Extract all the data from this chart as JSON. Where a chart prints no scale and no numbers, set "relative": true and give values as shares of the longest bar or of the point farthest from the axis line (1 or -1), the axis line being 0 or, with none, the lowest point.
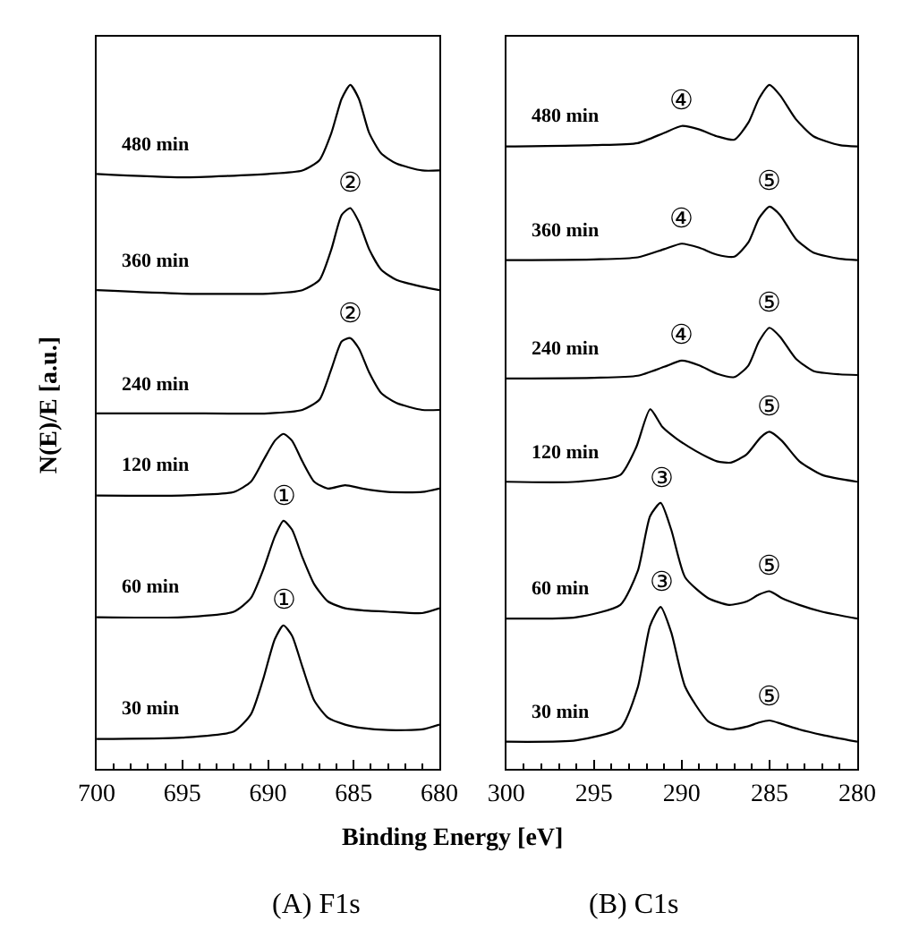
{
  "chart_data": [
    {
      "type": "line",
      "title": "(A) F1s",
      "xlabel": "Binding Energy [eV]",
      "ylabel": "N(E)/E [a.u.]",
      "xlim": [
        700,
        680
      ],
      "xticks": [
        700,
        695,
        690,
        685,
        680
      ],
      "relative": true,
      "series": [
        {
          "name": "480 min",
          "color": "#000000",
          "x": [
            700,
            695,
            690,
            688,
            687,
            686.3,
            685.7,
            685.2,
            684.7,
            684.1,
            683.4,
            682.5,
            681,
            680
          ],
          "values": [
            0.87,
            0.865,
            0.87,
            0.875,
            0.89,
            0.93,
            0.98,
            1.0,
            0.98,
            0.93,
            0.9,
            0.885,
            0.875,
            0.875
          ]
        },
        {
          "name": "360 min",
          "color": "#000000",
          "x": [
            700,
            695,
            690,
            688,
            687,
            686.3,
            685.7,
            685.2,
            684.7,
            684.1,
            683.4,
            682.5,
            681,
            680
          ],
          "values": [
            0.7,
            0.695,
            0.695,
            0.7,
            0.715,
            0.76,
            0.81,
            0.82,
            0.8,
            0.76,
            0.73,
            0.715,
            0.705,
            0.7
          ]
        },
        {
          "name": "240 min",
          "color": "#000000",
          "x": [
            700,
            695,
            690,
            688,
            687,
            686.3,
            685.7,
            685.2,
            684.7,
            684.1,
            683.4,
            682.5,
            681,
            680
          ],
          "values": [
            0.52,
            0.52,
            0.52,
            0.525,
            0.54,
            0.585,
            0.625,
            0.63,
            0.615,
            0.58,
            0.55,
            0.535,
            0.525,
            0.525
          ]
        },
        {
          "name": "120 min",
          "color": "#000000",
          "x": [
            700,
            695,
            692,
            691,
            690.3,
            689.6,
            689.1,
            688.6,
            688,
            687.3,
            686.5,
            685.5,
            684.5,
            683,
            681,
            680
          ],
          "values": [
            0.4,
            0.4,
            0.405,
            0.42,
            0.45,
            0.48,
            0.49,
            0.48,
            0.45,
            0.42,
            0.41,
            0.415,
            0.41,
            0.405,
            0.405,
            0.41
          ]
        },
        {
          "name": "60 min",
          "color": "#000000",
          "x": [
            700,
            695,
            692,
            691,
            690.3,
            689.6,
            689.1,
            688.6,
            688,
            687.3,
            686.5,
            685.5,
            684.5,
            683,
            681,
            680
          ],
          "values": [
            0.222,
            0.222,
            0.23,
            0.25,
            0.29,
            0.34,
            0.363,
            0.35,
            0.31,
            0.27,
            0.245,
            0.235,
            0.232,
            0.23,
            0.228,
            0.235
          ]
        },
        {
          "name": "30 min",
          "color": "#000000",
          "x": [
            700,
            695,
            692,
            691,
            690.3,
            689.6,
            689.1,
            688.6,
            688,
            687.3,
            686.5,
            685.5,
            684.5,
            683,
            681,
            680
          ],
          "values": [
            0.044,
            0.046,
            0.055,
            0.08,
            0.13,
            0.19,
            0.21,
            0.195,
            0.15,
            0.1,
            0.075,
            0.065,
            0.06,
            0.057,
            0.058,
            0.065
          ]
        }
      ],
      "annotations": [
        {
          "text": "②",
          "x": 685.2,
          "y": 0.82
        },
        {
          "text": "②",
          "x": 685.2,
          "y": 0.63
        },
        {
          "text": "①",
          "x": 689.1,
          "y": 0.363
        },
        {
          "text": "①",
          "x": 689.1,
          "y": 0.21
        }
      ]
    },
    {
      "type": "line",
      "title": "(B) C1s",
      "xlim": [
        300,
        280
      ],
      "xticks": [
        300,
        295,
        290,
        285,
        280
      ],
      "relative": true,
      "series": [
        {
          "name": "480 min",
          "color": "#000000",
          "x": [
            300,
            295,
            292.5,
            291,
            290,
            289,
            288,
            287,
            286.2,
            285.6,
            285,
            284.4,
            283.5,
            282.5,
            281,
            280
          ],
          "values": [
            0.91,
            0.912,
            0.915,
            0.93,
            0.94,
            0.935,
            0.925,
            0.92,
            0.945,
            0.98,
            1.0,
            0.985,
            0.95,
            0.925,
            0.912,
            0.91
          ]
        },
        {
          "name": "360 min",
          "color": "#000000",
          "x": [
            300,
            295,
            292.5,
            291,
            290,
            289,
            288,
            287,
            286.2,
            285.6,
            285,
            284.4,
            283.5,
            282.5,
            281,
            280
          ],
          "values": [
            0.744,
            0.745,
            0.748,
            0.76,
            0.768,
            0.762,
            0.752,
            0.749,
            0.77,
            0.805,
            0.822,
            0.81,
            0.775,
            0.755,
            0.746,
            0.744
          ]
        },
        {
          "name": "240 min",
          "color": "#000000",
          "x": [
            300,
            295,
            292.5,
            291,
            290,
            289,
            288,
            287,
            286.2,
            285.6,
            285,
            284.4,
            283.5,
            282.5,
            281,
            280
          ],
          "values": [
            0.571,
            0.572,
            0.575,
            0.588,
            0.597,
            0.59,
            0.578,
            0.573,
            0.59,
            0.625,
            0.645,
            0.632,
            0.6,
            0.582,
            0.577,
            0.576
          ]
        },
        {
          "name": "120 min",
          "color": "#000000",
          "x": [
            300,
            296,
            293.5,
            292.6,
            291.8,
            291.1,
            290.3,
            289.2,
            288,
            287.2,
            286.3,
            285.5,
            285,
            284.3,
            283.3,
            282,
            280
          ],
          "values": [
            0.42,
            0.42,
            0.43,
            0.47,
            0.526,
            0.5,
            0.483,
            0.465,
            0.45,
            0.448,
            0.46,
            0.485,
            0.493,
            0.48,
            0.45,
            0.43,
            0.42
          ]
        },
        {
          "name": "60 min",
          "color": "#000000",
          "x": [
            300,
            296,
            293.5,
            292.5,
            291.8,
            291.2,
            290.6,
            289.8,
            288.5,
            287.3,
            286.3,
            285.6,
            285,
            284.3,
            283.3,
            282,
            280
          ],
          "values": [
            0.22,
            0.222,
            0.24,
            0.29,
            0.37,
            0.389,
            0.35,
            0.28,
            0.25,
            0.24,
            0.245,
            0.255,
            0.26,
            0.25,
            0.24,
            0.23,
            0.22
          ]
        },
        {
          "name": "30 min",
          "color": "#000000",
          "x": [
            300,
            296,
            293.5,
            292.5,
            291.8,
            291.2,
            290.6,
            289.8,
            288.5,
            287.3,
            286.3,
            285.6,
            285,
            284.3,
            283.3,
            282,
            280
          ],
          "values": [
            0.04,
            0.042,
            0.06,
            0.12,
            0.21,
            0.237,
            0.2,
            0.12,
            0.07,
            0.058,
            0.062,
            0.068,
            0.071,
            0.066,
            0.058,
            0.05,
            0.04
          ]
        }
      ],
      "annotations": [
        {
          "text": "④",
          "x": 290,
          "y": 0.94
        },
        {
          "text": "④",
          "x": 290,
          "y": 0.768
        },
        {
          "text": "④",
          "x": 290,
          "y": 0.597
        },
        {
          "text": "⑤",
          "x": 285,
          "y": 0.822
        },
        {
          "text": "⑤",
          "x": 285,
          "y": 0.645
        },
        {
          "text": "⑤",
          "x": 285,
          "y": 0.493
        },
        {
          "text": "⑤",
          "x": 285,
          "y": 0.26
        },
        {
          "text": "⑤",
          "x": 285,
          "y": 0.071
        },
        {
          "text": "③",
          "x": 291.2,
          "y": 0.389
        },
        {
          "text": "③",
          "x": 291.2,
          "y": 0.237
        }
      ]
    }
  ]
}
